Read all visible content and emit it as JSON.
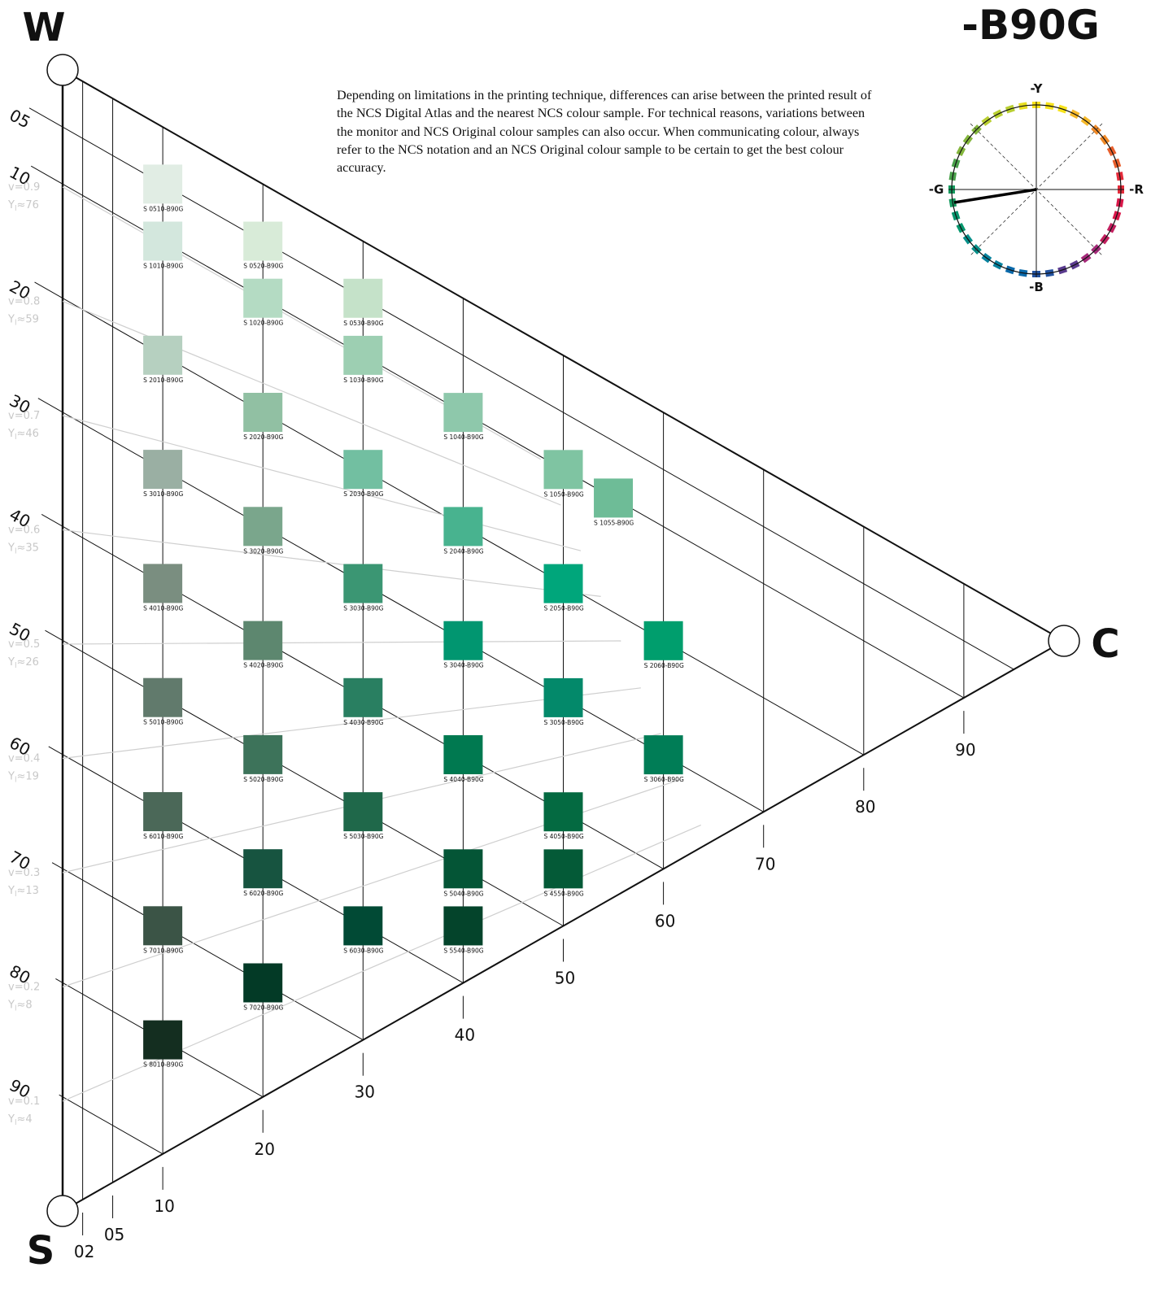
{
  "header": {
    "w_label": "W",
    "s_label": "S",
    "c_label": "C",
    "hue_title": "-B90G"
  },
  "note": "Depending on limitations in the printing technique, differences can arise between the printed result of the NCS Digital Atlas and the nearest NCS colour sample. For technical reasons, variations between the monitor and NCS Original colour samples can also occur. When communicating colour, always refer to the NCS notation and an NCS Original colour sample to be certain to get the best colour accuracy.",
  "blackness_scale": [
    "05",
    "10",
    "20",
    "30",
    "40",
    "50",
    "60",
    "70",
    "80",
    "90"
  ],
  "chromaticness_scale": [
    "02",
    "05",
    "10",
    "20",
    "30",
    "40",
    "50",
    "60",
    "70",
    "80",
    "90"
  ],
  "lightness_levels": [
    {
      "v": "v=0.9",
      "y": "76"
    },
    {
      "v": "v=0.8",
      "y": "59"
    },
    {
      "v": "v=0.7",
      "y": "46"
    },
    {
      "v": "v=0.6",
      "y": "35"
    },
    {
      "v": "v=0.5",
      "y": "26"
    },
    {
      "v": "v=0.4",
      "y": "19"
    },
    {
      "v": "v=0.3",
      "y": "13"
    },
    {
      "v": "v=0.2",
      "y": "8"
    },
    {
      "v": "v=0.1",
      "y": "4"
    }
  ],
  "colour_circle": {
    "top": "-Y",
    "bottom": "-B",
    "left": "-G",
    "right": "-R"
  },
  "swatches": [
    {
      "label": "S 0510-B90G",
      "s": 5,
      "c": 10,
      "color": "#e1ede4"
    },
    {
      "label": "S 1010-B90G",
      "s": 10,
      "c": 10,
      "color": "#d3e7dd"
    },
    {
      "label": "S 2010-B90G",
      "s": 20,
      "c": 10,
      "color": "#b6d0c0"
    },
    {
      "label": "S 3010-B90G",
      "s": 30,
      "c": 10,
      "color": "#9aafa3"
    },
    {
      "label": "S 4010-B90G",
      "s": 40,
      "c": 10,
      "color": "#7a8e80"
    },
    {
      "label": "S 5010-B90G",
      "s": 50,
      "c": 10,
      "color": "#617a6c"
    },
    {
      "label": "S 6010-B90G",
      "s": 60,
      "c": 10,
      "color": "#4b6858"
    },
    {
      "label": "S 7010-B90G",
      "s": 70,
      "c": 10,
      "color": "#3b5446"
    },
    {
      "label": "S 8010-B90G",
      "s": 80,
      "c": 10,
      "color": "#142e20"
    },
    {
      "label": "S 0520-B90G",
      "s": 5,
      "c": 20,
      "color": "#d8ebd8"
    },
    {
      "label": "S 1020-B90G",
      "s": 10,
      "c": 20,
      "color": "#b4dbc3"
    },
    {
      "label": "S 2020-B90G",
      "s": 20,
      "c": 20,
      "color": "#91c0a3"
    },
    {
      "label": "S 3020-B90G",
      "s": 30,
      "c": 20,
      "color": "#7aa68c"
    },
    {
      "label": "S 4020-B90G",
      "s": 40,
      "c": 20,
      "color": "#5d876f"
    },
    {
      "label": "S 5020-B90G",
      "s": 50,
      "c": 20,
      "color": "#3d735a"
    },
    {
      "label": "S 6020-B90G",
      "s": 60,
      "c": 20,
      "color": "#175440"
    },
    {
      "label": "S 7020-B90G",
      "s": 70,
      "c": 20,
      "color": "#033a26"
    },
    {
      "label": "S 0530-B90G",
      "s": 5,
      "c": 30,
      "color": "#c5e2c9"
    },
    {
      "label": "S 1030-B90G",
      "s": 10,
      "c": 30,
      "color": "#9dcfb2"
    },
    {
      "label": "S 2030-B90G",
      "s": 20,
      "c": 30,
      "color": "#72bfa1"
    },
    {
      "label": "S 3030-B90G",
      "s": 30,
      "c": 30,
      "color": "#3b9673"
    },
    {
      "label": "S 4030-B90G",
      "s": 40,
      "c": 30,
      "color": "#297f61"
    },
    {
      "label": "S 5030-B90G",
      "s": 50,
      "c": 30,
      "color": "#1f684a"
    },
    {
      "label": "S 6030-B90G",
      "s": 60,
      "c": 30,
      "color": "#014a35"
    },
    {
      "label": "S 1040-B90G",
      "s": 10,
      "c": 40,
      "color": "#8ec8ab"
    },
    {
      "label": "S 2040-B90G",
      "s": 20,
      "c": 40,
      "color": "#48b38f"
    },
    {
      "label": "S 3040-B90G",
      "s": 30,
      "c": 40,
      "color": "#019670"
    },
    {
      "label": "S 4040-B90G",
      "s": 40,
      "c": 40,
      "color": "#007950"
    },
    {
      "label": "S 5040-B90G",
      "s": 50,
      "c": 40,
      "color": "#045536"
    },
    {
      "label": "S 5540-B90G",
      "s": 55,
      "c": 40,
      "color": "#04442b"
    },
    {
      "label": "S 1050-B90G",
      "s": 10,
      "c": 50,
      "color": "#7fc4a2"
    },
    {
      "label": "S 2050-B90G",
      "s": 20,
      "c": 50,
      "color": "#00a67b"
    },
    {
      "label": "S 3050-B90G",
      "s": 30,
      "c": 50,
      "color": "#03896a"
    },
    {
      "label": "S 4050-B90G",
      "s": 40,
      "c": 50,
      "color": "#046a41"
    },
    {
      "label": "S 4550-B90G",
      "s": 45,
      "c": 50,
      "color": "#045a37"
    },
    {
      "label": "S 1055-B90G",
      "s": 10,
      "c": 55,
      "color": "#6ebc97"
    },
    {
      "label": "S 2060-B90G",
      "s": 20,
      "c": 60,
      "color": "#009e6d"
    },
    {
      "label": "S 3060-B90G",
      "s": 30,
      "c": 60,
      "color": "#007d56"
    }
  ]
}
